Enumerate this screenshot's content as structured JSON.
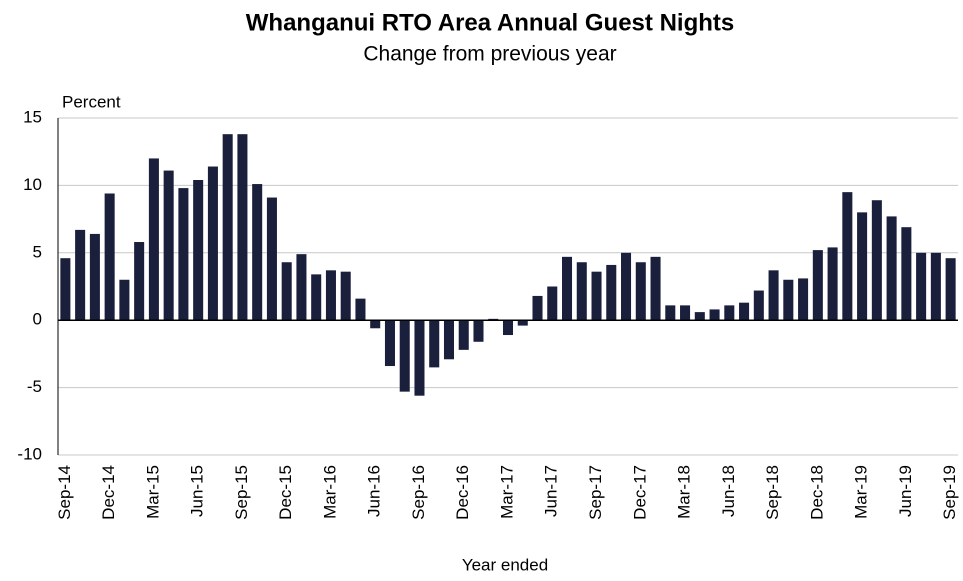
{
  "chart_data": {
    "type": "bar",
    "title": "Whanganui RTO Area Annual Guest Nights",
    "subtitle": "Change from previous year",
    "y_label": "Percent",
    "x_label": "Year ended",
    "categories": [
      "Sep-14",
      null,
      null,
      "Dec-14",
      null,
      null,
      "Mar-15",
      null,
      null,
      "Jun-15",
      null,
      null,
      "Sep-15",
      null,
      null,
      "Dec-15",
      null,
      null,
      "Mar-16",
      null,
      null,
      "Jun-16",
      null,
      null,
      "Sep-16",
      null,
      null,
      "Dec-16",
      null,
      null,
      "Mar-17",
      null,
      null,
      "Jun-17",
      null,
      null,
      "Sep-17",
      null,
      null,
      "Dec-17",
      null,
      null,
      "Mar-18",
      null,
      null,
      "Jun-18",
      null,
      null,
      "Sep-18",
      null,
      null,
      "Dec-18",
      null,
      null,
      "Mar-19",
      null,
      null,
      "Jun-19",
      null,
      null,
      "Sep-19"
    ],
    "values": [
      4.6,
      6.7,
      6.4,
      9.4,
      3.0,
      5.8,
      12.0,
      11.1,
      9.8,
      10.4,
      11.4,
      13.8,
      13.8,
      10.1,
      9.1,
      4.3,
      4.9,
      3.4,
      3.7,
      3.6,
      1.6,
      -0.6,
      -3.4,
      -5.3,
      -5.6,
      -3.5,
      -2.9,
      -2.2,
      -1.6,
      0.1,
      -1.1,
      -0.4,
      1.8,
      2.5,
      4.7,
      4.3,
      3.6,
      4.1,
      5.0,
      4.3,
      4.7,
      1.1,
      1.1,
      0.6,
      0.8,
      1.1,
      1.3,
      2.2,
      3.7,
      3.0,
      3.1,
      5.2,
      5.4,
      9.5,
      8.0,
      8.9,
      7.7,
      6.9,
      5.0,
      5.0,
      4.6
    ],
    "color": "#1a1f3c",
    "ylim": [
      -10,
      15
    ],
    "yticks": [
      -10,
      -5,
      0,
      5,
      10,
      15
    ],
    "grid": true
  }
}
